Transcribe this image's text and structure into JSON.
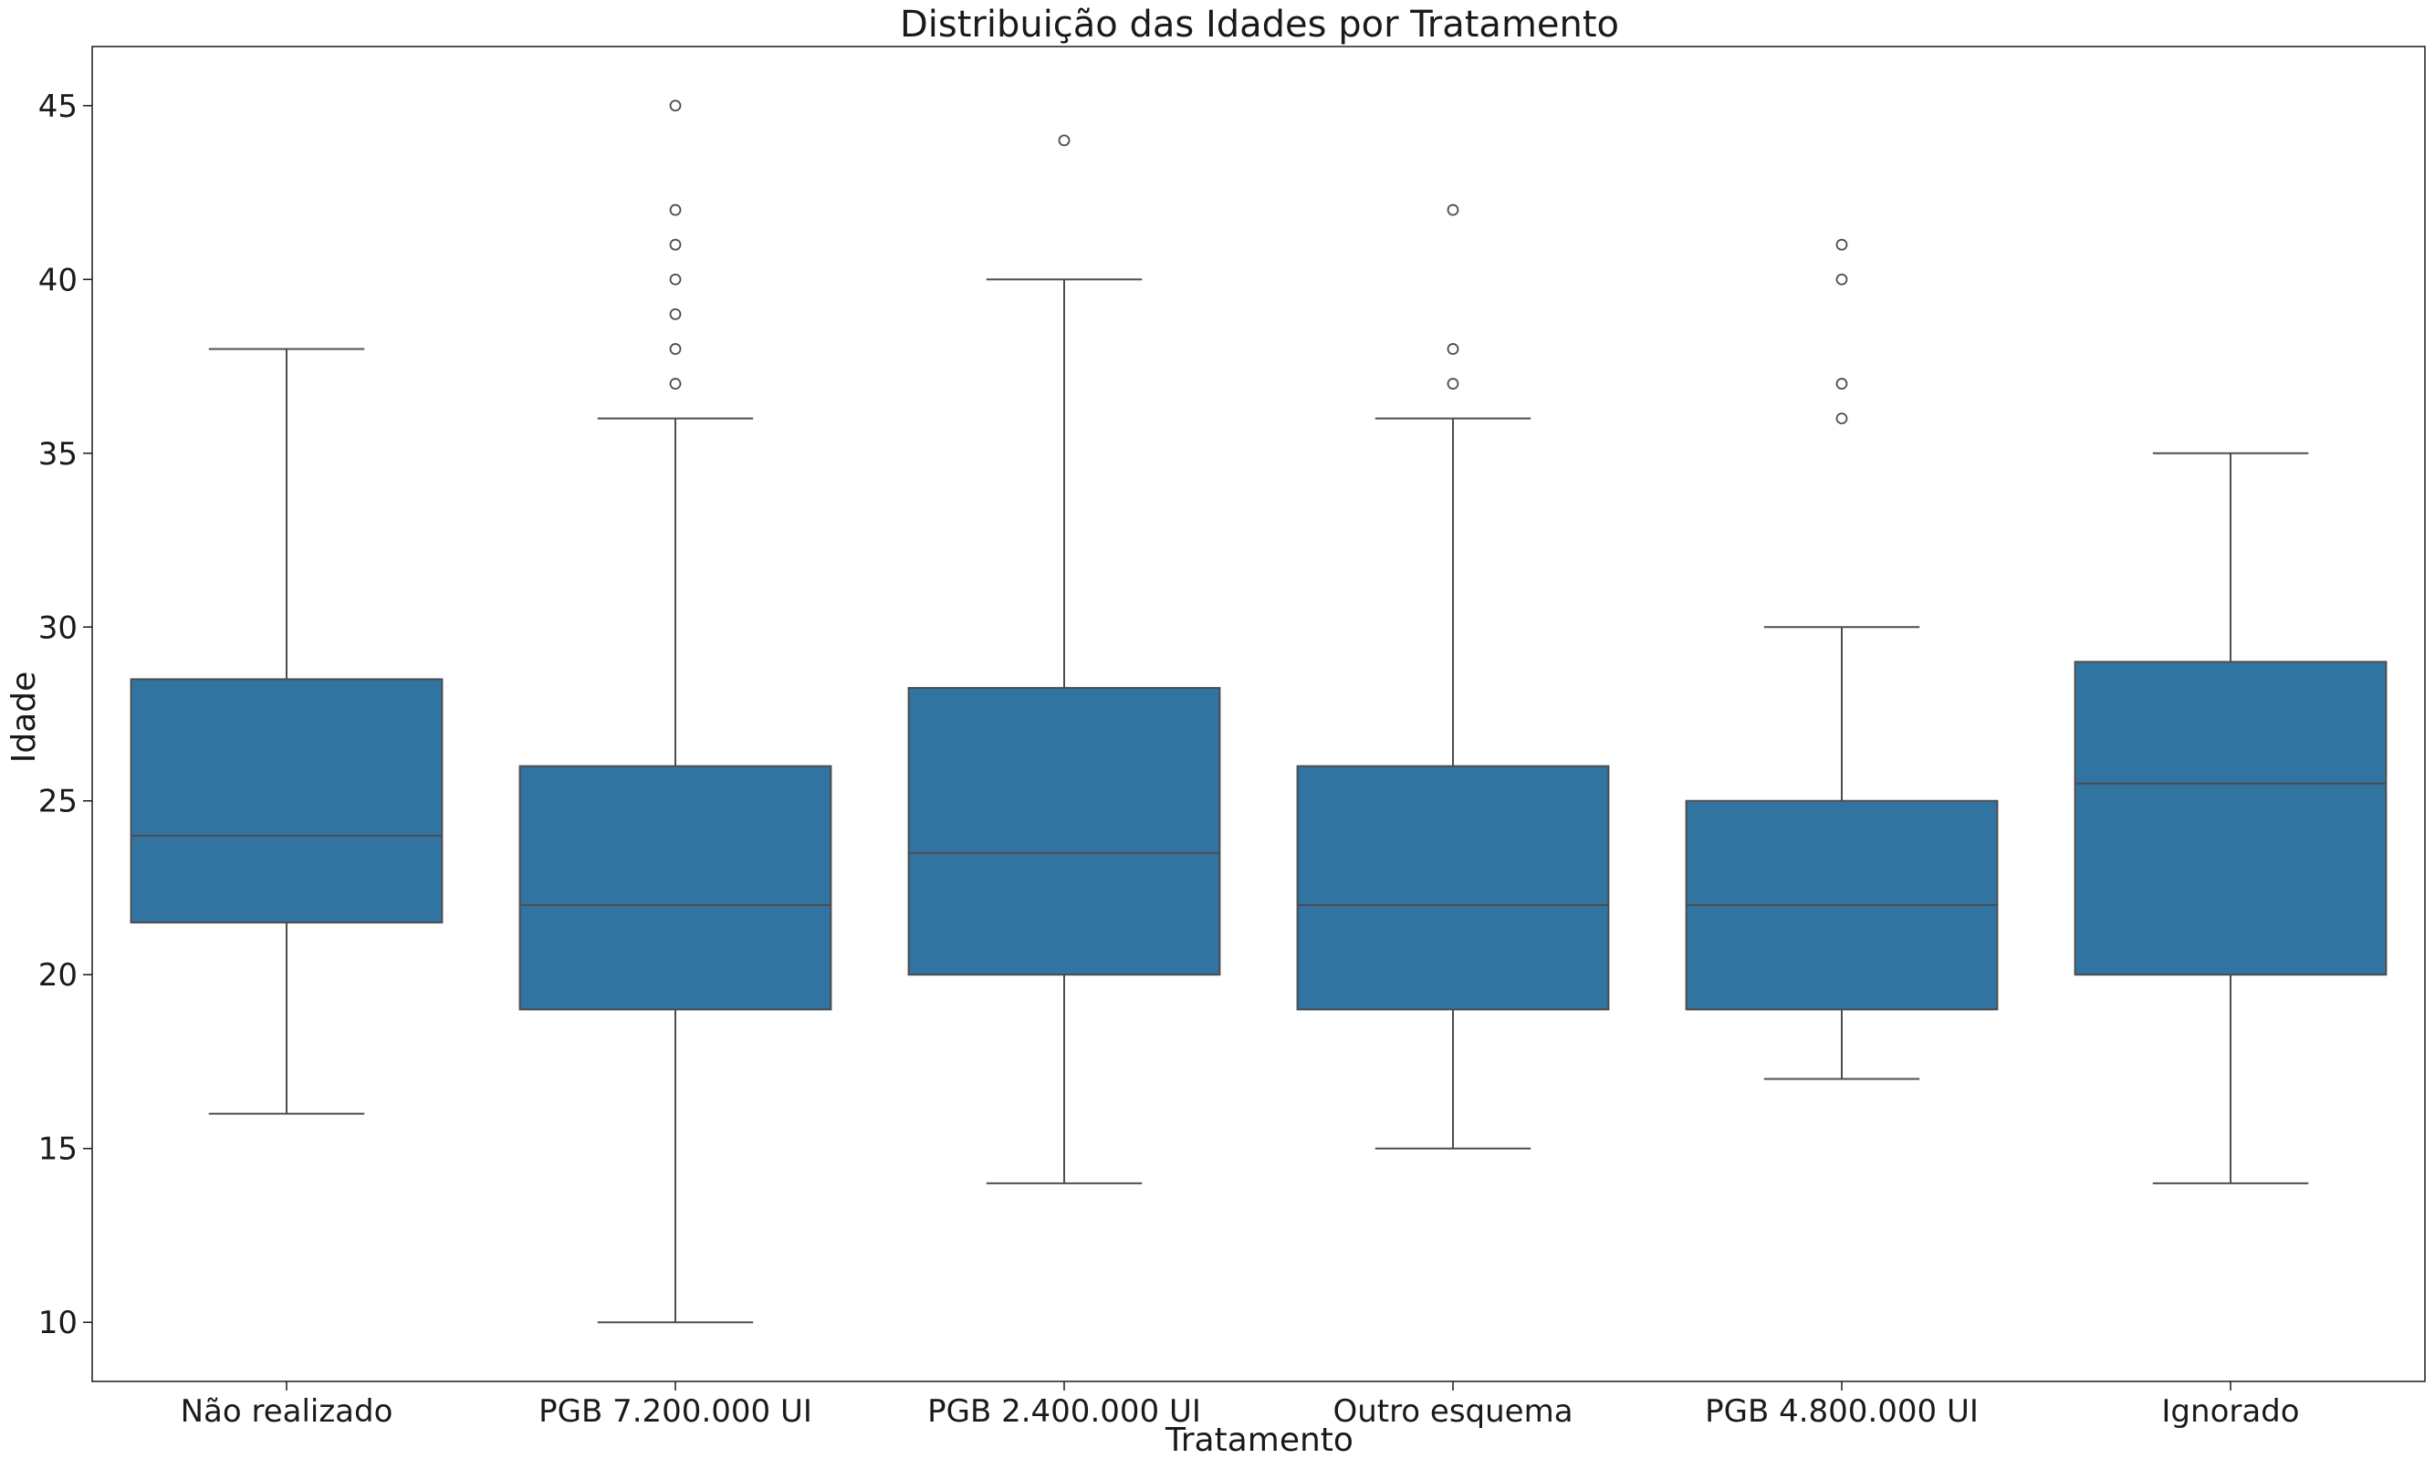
{
  "chart_data": {
    "type": "box",
    "title": "Distribuição das Idades por Tratamento",
    "xlabel": "Tratamento",
    "ylabel": "Idade",
    "ylim": [
      8.3,
      46.7
    ],
    "yticks": [
      10,
      15,
      20,
      25,
      30,
      35,
      40,
      45
    ],
    "grid": false,
    "legend": "none",
    "box_color": "#3274a1",
    "line_color": "#4d4d4d",
    "categories": [
      "Não realizado",
      "PGB 7.200.000 UI",
      "PGB 2.400.000 UI",
      "Outro esquema",
      "PGB 4.800.000 UI",
      "Ignorado"
    ],
    "boxes": [
      {
        "category": "Não realizado",
        "whisker_low": 16,
        "q1": 21.5,
        "median": 24,
        "q3": 28.5,
        "whisker_high": 38,
        "outliers": []
      },
      {
        "category": "PGB 7.200.000 UI",
        "whisker_low": 10,
        "q1": 19,
        "median": 22,
        "q3": 26,
        "whisker_high": 36,
        "outliers": [
          37,
          38,
          39,
          40,
          41,
          42,
          45
        ]
      },
      {
        "category": "PGB 2.400.000 UI",
        "whisker_low": 14,
        "q1": 20,
        "median": 23.5,
        "q3": 28.25,
        "whisker_high": 40,
        "outliers": [
          44
        ]
      },
      {
        "category": "Outro esquema",
        "whisker_low": 15,
        "q1": 19,
        "median": 22,
        "q3": 26,
        "whisker_high": 36,
        "outliers": [
          37,
          38,
          42
        ]
      },
      {
        "category": "PGB 4.800.000 UI",
        "whisker_low": 17,
        "q1": 19,
        "median": 22,
        "q3": 25,
        "whisker_high": 30,
        "outliers": [
          36,
          37,
          40,
          41
        ]
      },
      {
        "category": "Ignorado",
        "whisker_low": 14,
        "q1": 20,
        "median": 25.5,
        "q3": 29,
        "whisker_high": 35,
        "outliers": []
      }
    ]
  }
}
